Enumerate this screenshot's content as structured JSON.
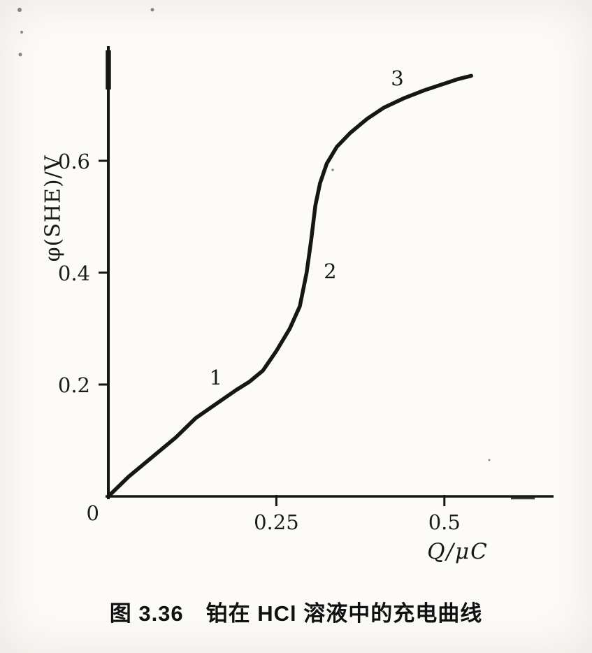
{
  "figure": {
    "caption": "图 3.36　铂在 HCl 溶液中的充电曲线"
  },
  "chart_data": {
    "type": "line",
    "title": "",
    "xlabel": "Q/μC",
    "ylabel": "φ(SHE)/V",
    "xlim": [
      0,
      0.65
    ],
    "ylim": [
      0,
      0.8
    ],
    "grid": false,
    "legend": "none",
    "ink_color": "#161616",
    "origin_label": "0",
    "x_ticks": [
      {
        "value": 0.25,
        "label": "0.25"
      },
      {
        "value": 0.5,
        "label": "0.5"
      }
    ],
    "y_ticks": [
      {
        "value": 0.2,
        "label": "0.2"
      },
      {
        "value": 0.4,
        "label": "0.4"
      },
      {
        "value": 0.6,
        "label": "0.6"
      }
    ],
    "series": [
      {
        "name": "charging-curve-Pt-in-HCl",
        "x": [
          0,
          0.03,
          0.06,
          0.1,
          0.13,
          0.16,
          0.19,
          0.21,
          0.23,
          0.25,
          0.27,
          0.285,
          0.295,
          0.302,
          0.308,
          0.315,
          0.325,
          0.34,
          0.36,
          0.385,
          0.41,
          0.44,
          0.47,
          0.5,
          0.52,
          0.54
        ],
        "y": [
          0,
          0.035,
          0.065,
          0.105,
          0.14,
          0.165,
          0.19,
          0.205,
          0.225,
          0.26,
          0.3,
          0.34,
          0.4,
          0.46,
          0.52,
          0.56,
          0.595,
          0.625,
          0.65,
          0.675,
          0.695,
          0.712,
          0.726,
          0.738,
          0.746,
          0.752
        ]
      }
    ],
    "annotations": [
      {
        "text": "1",
        "x": 0.16,
        "y": 0.2
      },
      {
        "text": "2",
        "x": 0.33,
        "y": 0.39
      },
      {
        "text": "3",
        "x": 0.43,
        "y": 0.735
      }
    ]
  }
}
